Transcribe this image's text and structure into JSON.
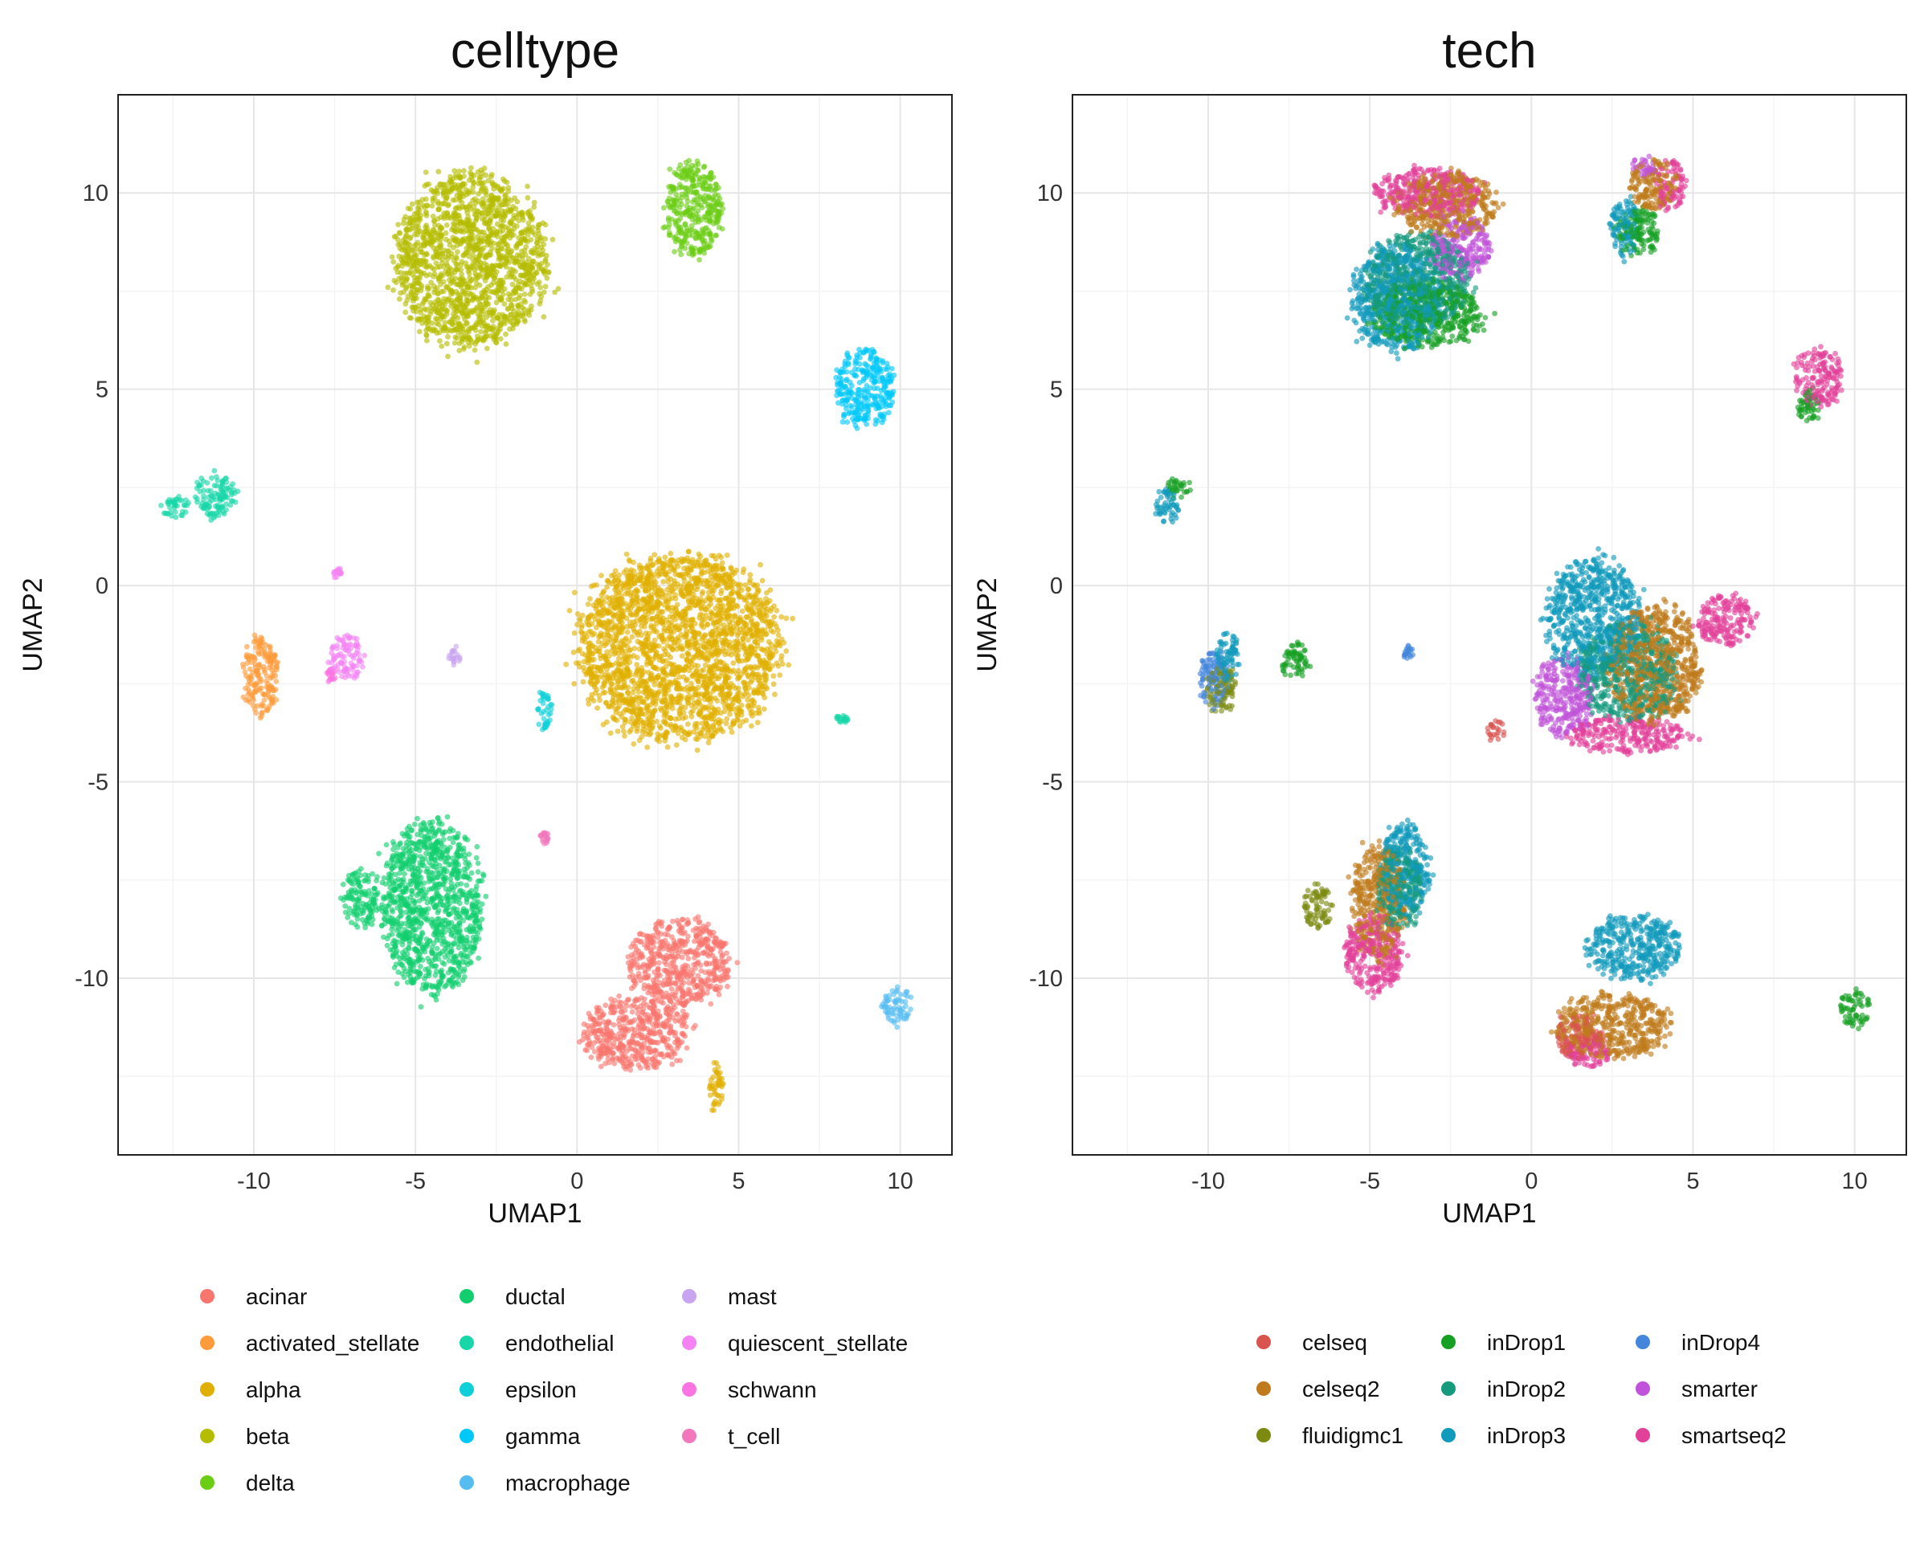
{
  "chart_data": [
    {
      "type": "scatter",
      "title": "celltype",
      "xlabel": "UMAP1",
      "ylabel": "UMAP2",
      "xlim": [
        -14.2,
        11.6
      ],
      "ylim": [
        -14.5,
        12.5
      ],
      "x_ticks": [
        -10,
        -5,
        0,
        5,
        10
      ],
      "y_ticks": [
        -10,
        -5,
        0,
        5,
        10
      ],
      "x_tick_labels": [
        "-10",
        "-5",
        "0",
        "5",
        "10"
      ],
      "y_tick_labels": [
        "-10",
        "-5",
        "0",
        "5",
        "10"
      ],
      "grid": true,
      "legend": "bottom",
      "legend_columns": 3,
      "series": [
        {
          "name": "acinar",
          "color": "#F8766D",
          "clusters": [
            {
              "cx": 3.2,
              "cy": -9.6,
              "rx": 1.7,
              "ry": 1.2
            },
            {
              "cx": 1.8,
              "cy": -11.4,
              "rx": 1.8,
              "ry": 1.0
            }
          ]
        },
        {
          "name": "activated_stellate",
          "color": "#FF9B3A",
          "clusters": [
            {
              "cx": -9.8,
              "cy": -2.3,
              "rx": 0.6,
              "ry": 1.1
            }
          ]
        },
        {
          "name": "alpha",
          "color": "#E0B000",
          "clusters": [
            {
              "cx": 3.2,
              "cy": -1.6,
              "rx": 3.4,
              "ry": 2.6
            },
            {
              "cx": 4.3,
              "cy": -12.8,
              "rx": 0.25,
              "ry": 0.7
            }
          ]
        },
        {
          "name": "beta",
          "color": "#B5BD00",
          "clusters": [
            {
              "cx": -3.3,
              "cy": 8.3,
              "rx": 2.5,
              "ry": 2.4
            }
          ]
        },
        {
          "name": "delta",
          "color": "#6BCD14",
          "clusters": [
            {
              "cx": 3.6,
              "cy": 9.6,
              "rx": 1.0,
              "ry": 1.3
            }
          ]
        },
        {
          "name": "ductal",
          "color": "#12CF6E",
          "clusters": [
            {
              "cx": -4.5,
              "cy": -8.2,
              "rx": 1.7,
              "ry": 2.4
            },
            {
              "cx": -6.7,
              "cy": -8.0,
              "rx": 0.6,
              "ry": 0.8
            }
          ]
        },
        {
          "name": "endothelial",
          "color": "#17D6A8",
          "clusters": [
            {
              "cx": -11.2,
              "cy": 2.3,
              "rx": 0.7,
              "ry": 0.6
            },
            {
              "cx": -12.4,
              "cy": 2.0,
              "rx": 0.5,
              "ry": 0.3
            },
            {
              "cx": 8.2,
              "cy": -3.4,
              "rx": 0.2,
              "ry": 0.1
            }
          ]
        },
        {
          "name": "epsilon",
          "color": "#0FD0D8",
          "clusters": [
            {
              "cx": -1.0,
              "cy": -3.2,
              "rx": 0.25,
              "ry": 0.6
            }
          ]
        },
        {
          "name": "gamma",
          "color": "#00C8F8",
          "clusters": [
            {
              "cx": 8.9,
              "cy": 5.0,
              "rx": 1.0,
              "ry": 1.1
            }
          ]
        },
        {
          "name": "macrophage",
          "color": "#55BDF0",
          "clusters": [
            {
              "cx": 9.9,
              "cy": -10.7,
              "rx": 0.5,
              "ry": 0.5
            }
          ]
        },
        {
          "name": "mast",
          "color": "#C9A4F0",
          "clusters": [
            {
              "cx": -3.8,
              "cy": -1.8,
              "rx": 0.2,
              "ry": 0.3
            }
          ]
        },
        {
          "name": "quiescent_stellate",
          "color": "#F383F3",
          "clusters": [
            {
              "cx": -7.1,
              "cy": -1.8,
              "rx": 0.6,
              "ry": 0.6
            },
            {
              "cx": -7.4,
              "cy": 0.3,
              "rx": 0.15,
              "ry": 0.15
            }
          ]
        },
        {
          "name": "schwann",
          "color": "#FA74E2",
          "clusters": [
            {
              "cx": -7.6,
              "cy": -2.3,
              "rx": 0.2,
              "ry": 0.2
            }
          ]
        },
        {
          "name": "t_cell",
          "color": "#F078BB",
          "clusters": [
            {
              "cx": -1.0,
              "cy": -6.4,
              "rx": 0.15,
              "ry": 0.2
            }
          ]
        }
      ]
    },
    {
      "type": "scatter",
      "title": "tech",
      "xlabel": "UMAP1",
      "ylabel": "UMAP2",
      "xlim": [
        -14.2,
        11.6
      ],
      "ylim": [
        -14.5,
        12.5
      ],
      "x_ticks": [
        -10,
        -5,
        0,
        5,
        10
      ],
      "y_ticks": [
        -10,
        -5,
        0,
        5,
        10
      ],
      "x_tick_labels": [
        "-10",
        "-5",
        "0",
        "5",
        "10"
      ],
      "y_tick_labels": [
        "-10",
        "-5",
        "0",
        "5",
        "10"
      ],
      "grid": true,
      "legend": "bottom",
      "legend_columns": 3,
      "series": [
        {
          "name": "celseq",
          "color": "#D9534F",
          "clusters": [
            {
              "cx": -1.1,
              "cy": -3.7,
              "rx": 0.3,
              "ry": 0.3
            },
            {
              "cx": 1.5,
              "cy": -11.5,
              "rx": 0.8,
              "ry": 0.6
            }
          ]
        },
        {
          "name": "celseq2",
          "color": "#BF7A1C",
          "clusters": [
            {
              "cx": -2.6,
              "cy": 9.7,
              "rx": 1.7,
              "ry": 0.9
            },
            {
              "cx": 3.8,
              "cy": -2.0,
              "rx": 1.6,
              "ry": 1.6
            },
            {
              "cx": 2.5,
              "cy": -11.2,
              "rx": 1.9,
              "ry": 0.9
            },
            {
              "cx": -4.7,
              "cy": -8.0,
              "rx": 0.9,
              "ry": 1.6
            },
            {
              "cx": 3.8,
              "cy": 10.2,
              "rx": 0.8,
              "ry": 0.7
            }
          ]
        },
        {
          "name": "fluidigmc1",
          "color": "#7C8A12",
          "clusters": [
            {
              "cx": -6.6,
              "cy": -8.2,
              "rx": 0.5,
              "ry": 0.6
            },
            {
              "cx": -9.6,
              "cy": -2.6,
              "rx": 0.5,
              "ry": 0.7
            }
          ]
        },
        {
          "name": "inDrop1",
          "color": "#16A023",
          "clusters": [
            {
              "cx": -10.9,
              "cy": 2.5,
              "rx": 0.4,
              "ry": 0.3
            },
            {
              "cx": -7.3,
              "cy": -1.9,
              "rx": 0.5,
              "ry": 0.5
            },
            {
              "cx": -3.2,
              "cy": 6.9,
              "rx": 1.9,
              "ry": 0.9
            },
            {
              "cx": 3.3,
              "cy": 9.0,
              "rx": 0.7,
              "ry": 0.7
            },
            {
              "cx": 8.6,
              "cy": 4.6,
              "rx": 0.4,
              "ry": 0.5
            },
            {
              "cx": 10.0,
              "cy": -10.8,
              "rx": 0.5,
              "ry": 0.5
            }
          ]
        },
        {
          "name": "inDrop2",
          "color": "#159A7E",
          "clusters": [
            {
              "cx": -3.5,
              "cy": 7.8,
              "rx": 1.8,
              "ry": 1.3
            },
            {
              "cx": 3.0,
              "cy": -2.2,
              "rx": 1.6,
              "ry": 1.4
            },
            {
              "cx": -4.1,
              "cy": -7.7,
              "rx": 0.8,
              "ry": 1.2
            }
          ]
        },
        {
          "name": "inDrop3",
          "color": "#109ABC",
          "clusters": [
            {
              "cx": -4.2,
              "cy": 7.3,
              "rx": 1.5,
              "ry": 1.5
            },
            {
              "cx": 1.9,
              "cy": -0.8,
              "rx": 1.6,
              "ry": 1.6
            },
            {
              "cx": 3.2,
              "cy": -9.2,
              "rx": 1.6,
              "ry": 0.9
            },
            {
              "cx": -3.9,
              "cy": -7.2,
              "rx": 0.8,
              "ry": 1.3
            },
            {
              "cx": 2.9,
              "cy": 9.1,
              "rx": 0.5,
              "ry": 0.8
            },
            {
              "cx": -11.3,
              "cy": 2.0,
              "rx": 0.4,
              "ry": 0.5
            },
            {
              "cx": -9.4,
              "cy": -1.8,
              "rx": 0.4,
              "ry": 0.7
            }
          ]
        },
        {
          "name": "inDrop4",
          "color": "#4486DB",
          "clusters": [
            {
              "cx": -9.8,
              "cy": -2.4,
              "rx": 0.5,
              "ry": 0.8
            },
            {
              "cx": -3.8,
              "cy": -1.8,
              "rx": 0.2,
              "ry": 0.3
            }
          ]
        },
        {
          "name": "smarter",
          "color": "#C053D9",
          "clusters": [
            {
              "cx": 1.0,
              "cy": -2.8,
              "rx": 1.0,
              "ry": 1.1
            },
            {
              "cx": -2.2,
              "cy": 8.6,
              "rx": 1.0,
              "ry": 0.9
            },
            {
              "cx": 3.5,
              "cy": 10.7,
              "rx": 0.4,
              "ry": 0.3
            }
          ]
        },
        {
          "name": "smartseq2",
          "color": "#E2419A",
          "clusters": [
            {
              "cx": -3.2,
              "cy": 10.0,
              "rx": 1.8,
              "ry": 0.7
            },
            {
              "cx": 6.0,
              "cy": -0.9,
              "rx": 1.0,
              "ry": 0.7
            },
            {
              "cx": 3.0,
              "cy": -3.8,
              "rx": 2.0,
              "ry": 0.5
            },
            {
              "cx": -4.9,
              "cy": -9.4,
              "rx": 1.0,
              "ry": 1.1
            },
            {
              "cx": 8.9,
              "cy": 5.3,
              "rx": 0.8,
              "ry": 0.8
            },
            {
              "cx": 4.3,
              "cy": 10.2,
              "rx": 0.5,
              "ry": 0.7
            },
            {
              "cx": 1.8,
              "cy": -11.9,
              "rx": 0.8,
              "ry": 0.4
            }
          ]
        }
      ]
    }
  ]
}
